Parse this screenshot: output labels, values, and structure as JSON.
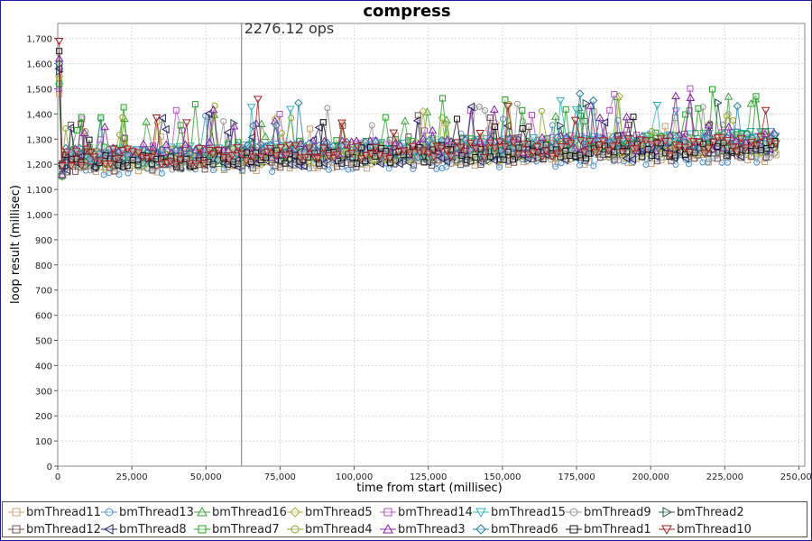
{
  "chart_data": {
    "type": "scatter",
    "title": "compress",
    "xlabel": "time from start (millisec)",
    "ylabel": "loop result (millisec)",
    "xlim": [
      0,
      252000
    ],
    "ylim": [
      0,
      1760
    ],
    "xticks": [
      0,
      25000,
      50000,
      75000,
      100000,
      125000,
      150000,
      175000,
      200000,
      225000,
      250000
    ],
    "yticks": [
      0,
      100,
      200,
      300,
      400,
      500,
      600,
      700,
      800,
      900,
      1000,
      1100,
      1200,
      1300,
      1400,
      1500,
      1600,
      1700
    ],
    "grid": true,
    "legend_position": "bottom",
    "annotation": {
      "x": 62000,
      "label": "2276.12 ops"
    },
    "x_end": 242000,
    "typical_range": [
      1190,
      1360
    ],
    "trend": "initial spike to ~1,500–1,690 at t≈1,000 ms, drops to ~1,150–1,220, then slowly rises to ~1,230–1,320 by 240,000 ms with occasional peaks near 1,400–1,540",
    "series": [
      {
        "name": "bmThread11",
        "marker": "square",
        "color": "#c8a070",
        "start": 1480,
        "base": 1195,
        "end_base": 1245
      },
      {
        "name": "bmThread13",
        "marker": "circle",
        "color": "#4a8fd0",
        "start": 1530,
        "base": 1190,
        "end_base": 1240
      },
      {
        "name": "bmThread16",
        "marker": "triangle-up",
        "color": "#3ca03c",
        "start": 1590,
        "base": 1220,
        "end_base": 1290
      },
      {
        "name": "bmThread5",
        "marker": "diamond",
        "color": "#b0b030",
        "start": 1550,
        "base": 1210,
        "end_base": 1270
      },
      {
        "name": "bmThread14",
        "marker": "square",
        "color": "#b050c0",
        "start": 1500,
        "base": 1230,
        "end_base": 1300
      },
      {
        "name": "bmThread15",
        "marker": "triangle-down",
        "color": "#30b0c0",
        "start": 1510,
        "base": 1225,
        "end_base": 1300
      },
      {
        "name": "bmThread9",
        "marker": "circle",
        "color": "#909090",
        "start": 1560,
        "base": 1205,
        "end_base": 1260
      },
      {
        "name": "bmThread2",
        "marker": "triangle-right",
        "color": "#205050",
        "start": 1570,
        "base": 1215,
        "end_base": 1270
      },
      {
        "name": "bmThread12",
        "marker": "square",
        "color": "#705050",
        "start": 1600,
        "base": 1200,
        "end_base": 1255
      },
      {
        "name": "bmThread8",
        "marker": "triangle-left",
        "color": "#202060",
        "start": 1580,
        "base": 1210,
        "end_base": 1265
      },
      {
        "name": "bmThread7",
        "marker": "square",
        "color": "#20a020",
        "start": 1520,
        "base": 1235,
        "end_base": 1305
      },
      {
        "name": "bmThread4",
        "marker": "circle",
        "color": "#90a020",
        "start": 1540,
        "base": 1220,
        "end_base": 1280
      },
      {
        "name": "bmThread3",
        "marker": "triangle-up",
        "color": "#8020a0",
        "start": 1620,
        "base": 1240,
        "end_base": 1295
      },
      {
        "name": "bmThread6",
        "marker": "diamond",
        "color": "#2080a0",
        "start": 1600,
        "base": 1230,
        "end_base": 1290
      },
      {
        "name": "bmThread1",
        "marker": "square",
        "color": "#101010",
        "start": 1650,
        "base": 1215,
        "end_base": 1270
      },
      {
        "name": "bmThread10",
        "marker": "triangle-down",
        "color": "#a02020",
        "start": 1690,
        "base": 1225,
        "end_base": 1280
      }
    ]
  }
}
